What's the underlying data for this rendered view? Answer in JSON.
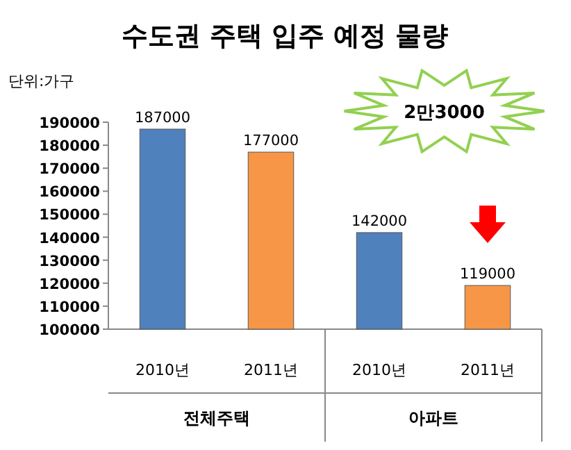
{
  "chart_data": {
    "type": "bar",
    "title": "수도권 주택 입주 예정 물량",
    "ylabel": "단위:가구",
    "categories": [
      "2010년",
      "2011년",
      "2010년",
      "2011년"
    ],
    "values": [
      187000,
      177000,
      142000,
      119000
    ],
    "colors": [
      "#4f81bd",
      "#f79646",
      "#4f81bd",
      "#f79646"
    ],
    "ylim": [
      100000,
      190000
    ],
    "yticks": [
      100000,
      110000,
      120000,
      130000,
      140000,
      150000,
      160000,
      170000,
      180000,
      190000
    ],
    "data_labels": true,
    "grid": false,
    "annotations": [
      "전체주택",
      "아파트",
      "2만3000"
    ]
  }
}
